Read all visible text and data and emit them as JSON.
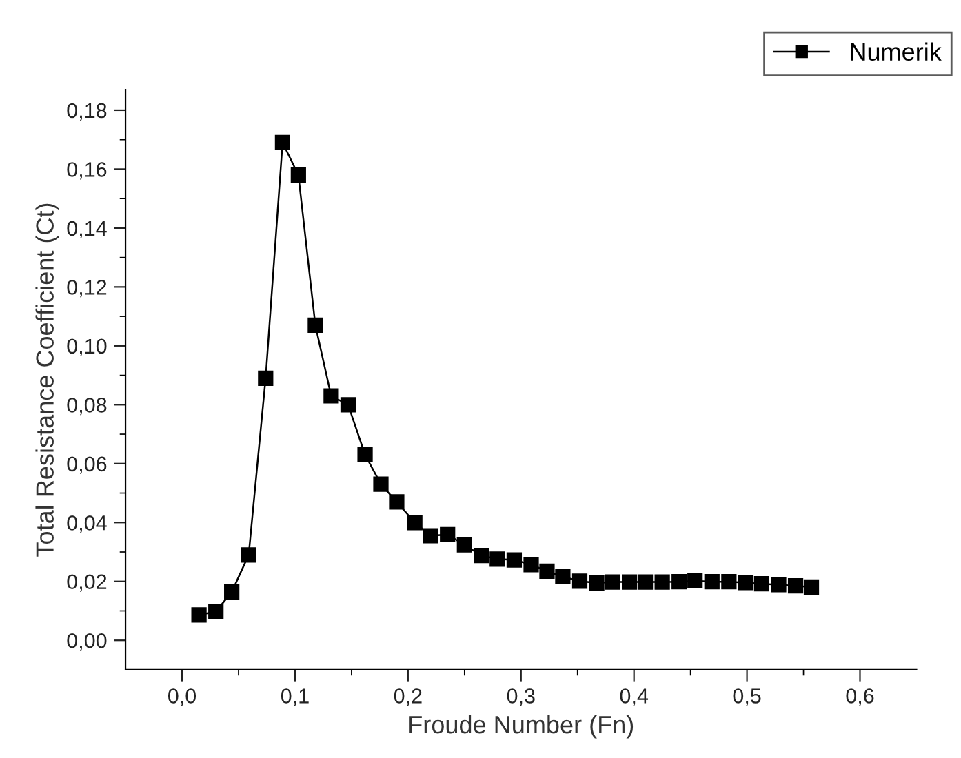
{
  "chart_data": {
    "type": "line",
    "xlabel": "Froude Number (Fn)",
    "ylabel": "Total Resistance Coefficient (Ct)",
    "x": [
      0.015,
      0.03,
      0.044,
      0.059,
      0.074,
      0.089,
      0.103,
      0.118,
      0.132,
      0.147,
      0.162,
      0.176,
      0.19,
      0.206,
      0.22,
      0.235,
      0.25,
      0.265,
      0.279,
      0.294,
      0.309,
      0.323,
      0.337,
      0.352,
      0.367,
      0.381,
      0.396,
      0.41,
      0.425,
      0.44,
      0.454,
      0.469,
      0.484,
      0.499,
      0.513,
      0.528,
      0.543,
      0.557
    ],
    "series": [
      {
        "name": "Numerik",
        "color": "#000000",
        "values": [
          0.0086,
          0.0098,
          0.0164,
          0.029,
          0.089,
          0.169,
          0.158,
          0.107,
          0.083,
          0.08,
          0.063,
          0.053,
          0.047,
          0.04,
          0.0355,
          0.0359,
          0.0324,
          0.0288,
          0.0276,
          0.0273,
          0.0257,
          0.0235,
          0.0216,
          0.0201,
          0.0195,
          0.0198,
          0.0198,
          0.0198,
          0.0198,
          0.0199,
          0.0202,
          0.0199,
          0.0199,
          0.0196,
          0.0192,
          0.0189,
          0.0185,
          0.0181
        ]
      }
    ],
    "xlim": [
      -0.05,
      0.65
    ],
    "ylim": [
      -0.01,
      0.187
    ],
    "xticks": [
      {
        "value": 0.0,
        "label": "0,0"
      },
      {
        "value": 0.1,
        "label": "0,1"
      },
      {
        "value": 0.2,
        "label": "0,2"
      },
      {
        "value": 0.3,
        "label": "0,3"
      },
      {
        "value": 0.4,
        "label": "0,4"
      },
      {
        "value": 0.5,
        "label": "0,5"
      },
      {
        "value": 0.6,
        "label": "0,6"
      }
    ],
    "yticks": [
      {
        "value": 0.0,
        "label": "0,00"
      },
      {
        "value": 0.02,
        "label": "0,02"
      },
      {
        "value": 0.04,
        "label": "0,04"
      },
      {
        "value": 0.06,
        "label": "0,06"
      },
      {
        "value": 0.08,
        "label": "0,08"
      },
      {
        "value": 0.1,
        "label": "0,10"
      },
      {
        "value": 0.12,
        "label": "0,12"
      },
      {
        "value": 0.14,
        "label": "0,14"
      },
      {
        "value": 0.16,
        "label": "0,16"
      },
      {
        "value": 0.18,
        "label": "0,18"
      }
    ],
    "marker": "square",
    "line_style": "solid",
    "grid": false,
    "legend": "top right"
  }
}
